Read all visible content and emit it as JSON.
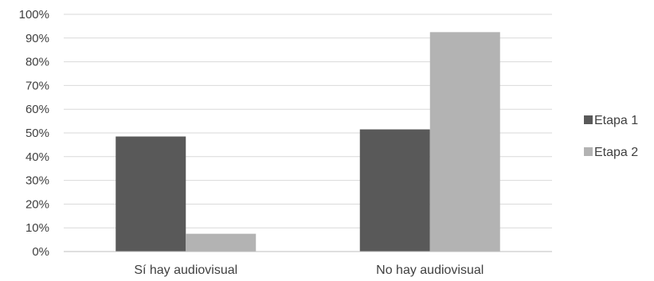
{
  "chart_data": {
    "type": "bar",
    "categories": [
      "Sí hay audiovisual",
      "No hay audiovisual"
    ],
    "series": [
      {
        "name": "Etapa 1",
        "values": [
          48.5,
          51.5
        ],
        "color": "#595959"
      },
      {
        "name": "Etapa 2",
        "values": [
          7.5,
          92.5
        ],
        "color": "#b3b3b3"
      }
    ],
    "ylim": [
      0,
      100
    ],
    "yticks": [
      "0%",
      "10%",
      "20%",
      "30%",
      "40%",
      "50%",
      "60%",
      "70%",
      "80%",
      "90%",
      "100%"
    ],
    "grid": true,
    "legend_position": "right"
  }
}
